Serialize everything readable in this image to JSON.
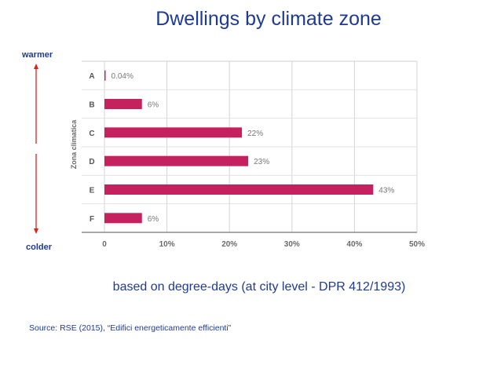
{
  "header": {
    "title": "Dwellings by climate zone"
  },
  "side_labels": {
    "top": "warmer",
    "bottom": "colder"
  },
  "subtitle": "based on degree-days (at city level - DPR 412/1993)",
  "source": "Source: RSE (2015), “Edifici energeticamente efficienti”",
  "colors": {
    "bar": "#c5215f",
    "arrow": "#d7261e",
    "text_accent": "#1f3a93"
  },
  "chart_data": {
    "type": "bar",
    "orientation": "horizontal",
    "ylabel": "Zona climatica",
    "categories": [
      "A",
      "B",
      "C",
      "D",
      "E",
      "F"
    ],
    "values": [
      0.04,
      6,
      22,
      23,
      43,
      6
    ],
    "value_labels": [
      "0.04%",
      "6%",
      "22%",
      "23%",
      "43%",
      "6%"
    ],
    "xlim": [
      0,
      50
    ],
    "xticks": [
      0,
      10,
      20,
      30,
      40,
      50
    ],
    "xtick_labels": [
      "0",
      "10%",
      "20%",
      "30%",
      "40%",
      "50%"
    ],
    "grid": true
  }
}
